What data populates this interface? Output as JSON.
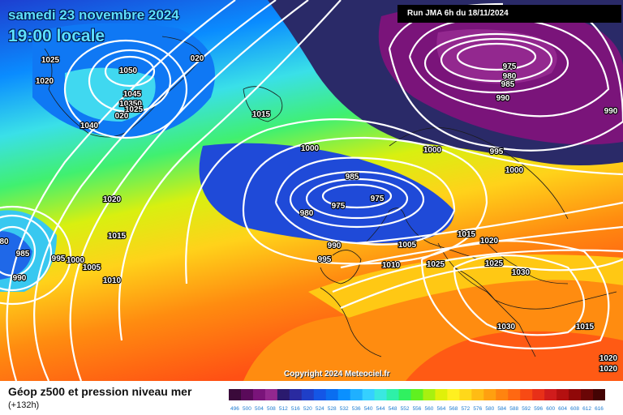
{
  "header": {
    "date": "samedi 23 novembre 2024",
    "time": "19:00 locale",
    "run": "Run JMA 6h du 18/11/2024"
  },
  "copyright": "Copyright 2024 Meteociel.fr",
  "footer": {
    "title": "Géop z500 et pression niveau mer",
    "subtitle": "(+132h)"
  },
  "legend": {
    "values": [
      "496",
      "500",
      "504",
      "508",
      "512",
      "516",
      "520",
      "524",
      "528",
      "532",
      "536",
      "540",
      "544",
      "548",
      "552",
      "556",
      "560",
      "564",
      "568",
      "572",
      "576",
      "580",
      "584",
      "588",
      "592",
      "596",
      "600",
      "604",
      "608",
      "612",
      "616"
    ],
    "colors": [
      "#3a0a3a",
      "#5a0a5a",
      "#7a147a",
      "#93288f",
      "#2a1a6e",
      "#2a2aa0",
      "#1f3fc8",
      "#1456e6",
      "#0a6ef0",
      "#0a90ff",
      "#1fb0ff",
      "#35d0ff",
      "#3ae8e0",
      "#2ef0a8",
      "#30f060",
      "#60f020",
      "#a8f010",
      "#e0f00a",
      "#fff020",
      "#ffd81a",
      "#ffbc14",
      "#ffa010",
      "#ff8410",
      "#ff6812",
      "#f84a14",
      "#e83018",
      "#d01c1c",
      "#b41010",
      "#900808",
      "#6a0606",
      "#440404"
    ]
  },
  "pressure_labels": [
    {
      "text": "1025"
    },
    {
      "text": "1020"
    },
    {
      "text": "1050"
    },
    {
      "text": "020"
    },
    {
      "text": "1045"
    },
    {
      "text": "10350"
    },
    {
      "text": "1025"
    },
    {
      "text": "020"
    },
    {
      "text": "1040"
    },
    {
      "text": "1015"
    },
    {
      "text": "975"
    },
    {
      "text": "980"
    },
    {
      "text": "985"
    },
    {
      "text": "990"
    },
    {
      "text": "990"
    },
    {
      "text": "1000"
    },
    {
      "text": "1000"
    },
    {
      "text": "995"
    },
    {
      "text": "1000"
    },
    {
      "text": "985"
    },
    {
      "text": "975"
    },
    {
      "text": "975"
    },
    {
      "text": "980"
    },
    {
      "text": "1020"
    },
    {
      "text": "1015"
    },
    {
      "text": "80"
    },
    {
      "text": "985"
    },
    {
      "text": "995"
    },
    {
      "text": "1000"
    },
    {
      "text": "1005"
    },
    {
      "text": "990"
    },
    {
      "text": "1010"
    },
    {
      "text": "990"
    },
    {
      "text": "995"
    },
    {
      "text": "1005"
    },
    {
      "text": "1015"
    },
    {
      "text": "1020"
    },
    {
      "text": "1010"
    },
    {
      "text": "1025"
    },
    {
      "text": "1025"
    },
    {
      "text": "1030"
    },
    {
      "text": "1030"
    },
    {
      "text": "1015"
    },
    {
      "text": "1020"
    },
    {
      "text": "1020"
    }
  ]
}
